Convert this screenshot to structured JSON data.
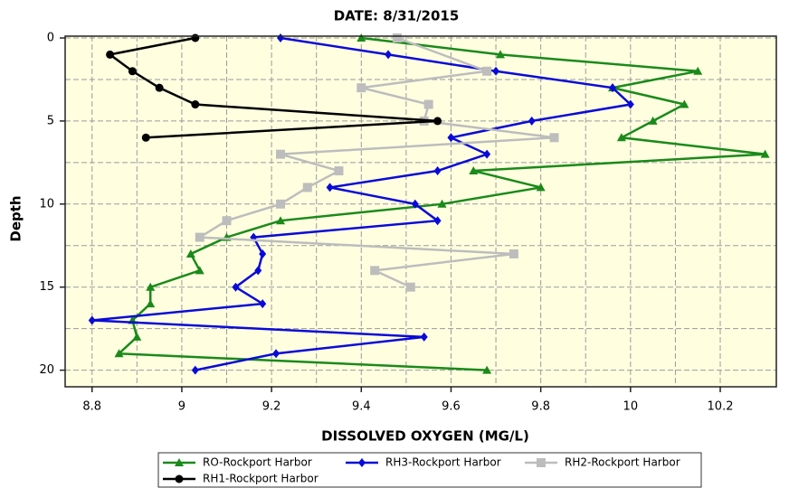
{
  "chart_data": {
    "type": "line",
    "title": "DATE: 8/31/2015",
    "x_label": "DISSOLVED OXYGEN (MG/L)",
    "y_label": "Depth",
    "xlim": [
      8.74,
      10.325
    ],
    "xticks": [
      8.8,
      9,
      9.2,
      9.4,
      9.6,
      9.8,
      10,
      10.2
    ],
    "ylim": [
      0,
      21
    ],
    "yticks": [
      0,
      5,
      10,
      15,
      20
    ],
    "y_inverted": true,
    "grid": true,
    "series": [
      {
        "name": "RO-Rockport Harbor",
        "color": "#1a8a1a",
        "marker": "triangle",
        "x": [
          9.4,
          9.71,
          10.15,
          9.96,
          10.12,
          10.05,
          9.98,
          10.3,
          9.65,
          9.8,
          9.58,
          9.22,
          9.1,
          9.02,
          9.04,
          8.93,
          8.93,
          8.89,
          8.9,
          8.86,
          9.68
        ],
        "y": [
          0,
          1,
          2,
          3,
          4,
          5,
          6,
          7,
          8,
          9,
          10,
          11,
          12,
          13,
          14,
          15,
          16,
          17,
          18,
          19,
          20
        ]
      },
      {
        "name": "RH3-Rockport Harbor",
        "color": "#0a0ad8",
        "marker": "diamond",
        "x": [
          9.22,
          9.46,
          9.7,
          9.96,
          10.0,
          9.78,
          9.6,
          9.68,
          9.57,
          9.33,
          9.52,
          9.57,
          9.16,
          9.18,
          9.17,
          9.12,
          9.18,
          8.8,
          9.54,
          9.21,
          9.03
        ],
        "y": [
          0,
          1,
          2,
          3,
          4,
          5,
          6,
          7,
          8,
          9,
          10,
          11,
          12,
          13,
          14,
          15,
          16,
          17,
          18,
          19,
          20
        ]
      },
      {
        "name": "RH2-Rockport Harbor",
        "color": "#bdbdbd",
        "marker": "square",
        "x": [
          9.48,
          9.68,
          9.4,
          9.55,
          9.54,
          9.83,
          9.22,
          9.35,
          9.28,
          9.22,
          9.1,
          9.04,
          9.74,
          9.43,
          9.51
        ],
        "y": [
          0,
          2,
          3,
          4,
          5,
          6,
          7,
          8,
          9,
          10,
          11,
          12,
          13,
          14,
          15
        ]
      },
      {
        "name": "RH1-Rockport Harbor",
        "color": "#000000",
        "marker": "circle",
        "x": [
          9.03,
          8.84,
          8.89,
          8.95,
          9.03,
          9.57,
          8.92
        ],
        "y": [
          0,
          1,
          2,
          3,
          4,
          5,
          6
        ]
      }
    ]
  }
}
